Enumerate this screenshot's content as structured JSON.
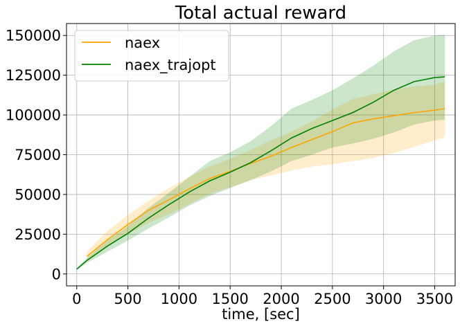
{
  "chart_data": {
    "type": "line",
    "title": "Total actual reward",
    "xlabel": "time, [sec]",
    "ylabel": "",
    "xlim": [
      -100,
      3700
    ],
    "ylim": [
      -7500,
      157500
    ],
    "xticks": [
      0,
      500,
      1000,
      1500,
      2000,
      2500,
      3000,
      3500
    ],
    "yticks": [
      0,
      25000,
      50000,
      75000,
      100000,
      125000,
      150000
    ],
    "grid": true,
    "legend_position": "top-left",
    "series": [
      {
        "name": "naex",
        "color": "#ffa500",
        "x": [
          100,
          300,
          500,
          700,
          900,
          1100,
          1300,
          1500,
          1700,
          1900,
          2100,
          2300,
          2500,
          2700,
          2900,
          3100,
          3300,
          3500,
          3600
        ],
        "mean": [
          11000,
          21500,
          31000,
          40000,
          46500,
          53500,
          60000,
          64500,
          69500,
          74000,
          79500,
          84500,
          89500,
          95000,
          97500,
          99500,
          101500,
          103000,
          104000
        ],
        "lower": [
          9000,
          17500,
          25000,
          32000,
          37500,
          44000,
          50500,
          54500,
          59000,
          62000,
          65000,
          67500,
          69000,
          71000,
          73000,
          76000,
          80000,
          84000,
          86000
        ],
        "upper": [
          14000,
          27000,
          37000,
          46000,
          54000,
          61000,
          67500,
          72500,
          78000,
          84000,
          89500,
          96000,
          103500,
          110000,
          113000,
          116000,
          118000,
          119000,
          121000
        ]
      },
      {
        "name": "naex_trajopt",
        "color": "#008000",
        "x": [
          0,
          100,
          300,
          500,
          700,
          900,
          1100,
          1300,
          1500,
          1700,
          1900,
          2100,
          2300,
          2500,
          2700,
          2900,
          3100,
          3300,
          3500,
          3600
        ],
        "mean": [
          3000,
          8500,
          17500,
          25500,
          35000,
          43500,
          51500,
          58500,
          64000,
          70000,
          77500,
          85500,
          91500,
          96500,
          101500,
          108000,
          115500,
          121000,
          123500,
          124000
        ],
        "lower": [
          2500,
          7000,
          14000,
          21000,
          28500,
          35500,
          43000,
          49000,
          54000,
          59000,
          64500,
          71000,
          75000,
          79500,
          82000,
          85000,
          89000,
          94000,
          96500,
          97000
        ],
        "upper": [
          3500,
          10000,
          21000,
          30000,
          41500,
          51000,
          61000,
          71000,
          76500,
          83500,
          93000,
          104000,
          109500,
          115500,
          123000,
          131000,
          140000,
          147000,
          150000,
          150500
        ]
      }
    ]
  }
}
